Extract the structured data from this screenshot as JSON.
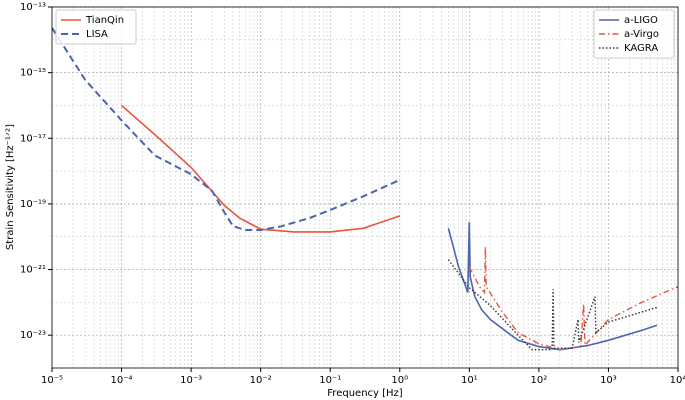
{
  "chart_data": {
    "type": "line",
    "xlabel": "Frequency [Hz]",
    "ylabel": "Strain Sensitivity [Hz⁻¹ᐟ²]",
    "xscale": "log",
    "yscale": "log",
    "grid": true,
    "xlim": [
      1e-05,
      10000.0
    ],
    "ylim": [
      1e-24,
      1e-13
    ],
    "xticks": [
      {
        "value": 1e-05,
        "label": "10⁻⁵"
      },
      {
        "value": 0.0001,
        "label": "10⁻⁴"
      },
      {
        "value": 0.001,
        "label": "10⁻³"
      },
      {
        "value": 0.01,
        "label": "10⁻²"
      },
      {
        "value": 0.1,
        "label": "10⁻¹"
      },
      {
        "value": 1,
        "label": "10⁰"
      },
      {
        "value": 10,
        "label": "10¹"
      },
      {
        "value": 100,
        "label": "10²"
      },
      {
        "value": 1000,
        "label": "10³"
      },
      {
        "value": 10000,
        "label": "10⁴"
      }
    ],
    "yticks": [
      {
        "value": 1e-13,
        "label": "10⁻¹³"
      },
      {
        "value": 1e-15,
        "label": "10⁻¹⁵"
      },
      {
        "value": 1e-17,
        "label": "10⁻¹⁷"
      },
      {
        "value": 1e-19,
        "label": "10⁻¹⁹"
      },
      {
        "value": 1e-21,
        "label": "10⁻²¹"
      },
      {
        "value": 1e-23,
        "label": "10⁻²³"
      }
    ],
    "series": [
      {
        "name": "TianQin",
        "color": "#e8553d",
        "linestyle": "solid",
        "legend": "upper left",
        "x": [
          0.0001,
          0.0003,
          0.001,
          0.003,
          0.005,
          0.01,
          0.03,
          0.1,
          0.3,
          1
        ],
        "values": [
          1e-16,
          1.3e-17,
          1.3e-18,
          9e-20,
          3.7e-20,
          1.7e-20,
          1.4e-20,
          1.4e-20,
          1.8e-20,
          4.3e-20
        ]
      },
      {
        "name": "LISA",
        "color": "#4c64ad",
        "linestyle": "dashed",
        "legend": "upper left",
        "x": [
          1e-05,
          3e-05,
          0.0001,
          0.0003,
          0.001,
          0.002,
          0.003,
          0.004,
          0.006,
          0.01,
          0.02,
          0.05,
          0.1,
          0.3,
          1
        ],
        "values": [
          2.3e-14,
          6e-16,
          3.5e-17,
          3e-18,
          8e-19,
          2.5e-19,
          5.6e-20,
          2.1e-20,
          1.6e-20,
          1.6e-20,
          2.1e-20,
          3.7e-20,
          6.5e-20,
          1.7e-19,
          5.4e-19
        ]
      },
      {
        "name": "a-LIGO",
        "color": "#4c64ad",
        "linestyle": "solid",
        "legend": "upper right",
        "x": [
          5,
          7,
          9.5,
          10,
          10.3,
          12,
          15,
          20,
          50,
          100,
          200,
          500,
          1000,
          3000,
          5000
        ],
        "values": [
          1.8e-20,
          1.2e-21,
          2e-22,
          2.8e-20,
          6e-22,
          1.5e-22,
          6e-23,
          3e-23,
          7e-24,
          4.5e-24,
          3.6e-24,
          4.8e-24,
          7e-24,
          1.4e-23,
          2e-23
        ]
      },
      {
        "name": "a-Virgo",
        "color": "#e8553d",
        "linestyle": "dashdot",
        "legend": "upper right",
        "x": [
          10,
          14,
          16.5,
          17,
          17.5,
          30,
          50,
          100,
          200,
          400,
          440,
          460,
          1000,
          3000,
          10000
        ],
        "values": [
          1.2e-21,
          3e-22,
          2e-22,
          5e-21,
          3e-22,
          5e-23,
          1.2e-23,
          5.5e-24,
          3.6e-24,
          4.5e-24,
          9e-23,
          5e-24,
          3e-23,
          1e-22,
          3e-22
        ]
      },
      {
        "name": "KAGRA",
        "color": "#333333",
        "linestyle": "dotted",
        "legend": "upper right",
        "x": [
          5,
          10,
          20,
          50,
          80,
          155,
          160,
          165,
          300,
          365,
          375,
          640,
          660,
          1000,
          5000
        ],
        "values": [
          2e-21,
          2.8e-22,
          8e-23,
          1e-23,
          3.6e-24,
          3.6e-24,
          2.5e-22,
          4e-24,
          4e-24,
          3e-23,
          6e-24,
          1.5e-22,
          1.2e-23,
          2.5e-23,
          7e-23
        ]
      }
    ]
  }
}
